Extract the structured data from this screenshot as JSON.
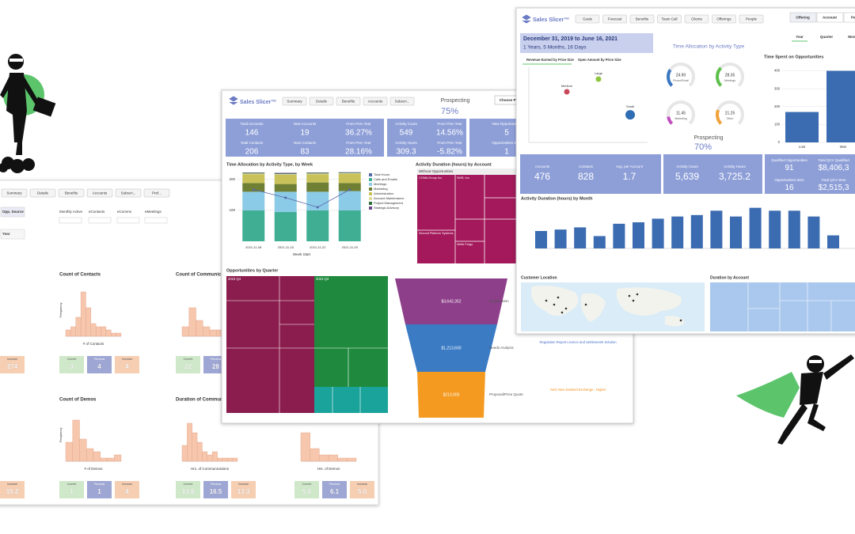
{
  "back_dashboard": {
    "buttons": [
      "Summary",
      "Details",
      "Benefits",
      "Accounts",
      "Subscri...",
      "Pref..."
    ],
    "filters": [
      "Opp. Source",
      "Year",
      "Monthly Active",
      "eContacts",
      "eComms",
      "eMeetings"
    ],
    "stat_labels": [
      "Current",
      "Previous",
      "Increase"
    ],
    "stat_colors": [
      "#cfe8c9",
      "#9ea6d3",
      "#f6ceb2"
    ],
    "bar_color": "#f6c6ad",
    "ylim": [
      0,
      15
    ],
    "histograms": [
      {
        "stats": [
          "274"
        ]
      },
      {
        "title": "Count of Contacts",
        "x_label": "# of Contacts",
        "y_label": "Frequency",
        "values": [
          2,
          3,
          6,
          14,
          9,
          4,
          3,
          3,
          2,
          1,
          1
        ],
        "stats": [
          "3",
          "4",
          "4"
        ]
      },
      {
        "title": "Count of Communications",
        "values": [
          3,
          9,
          5,
          3,
          2,
          2,
          1,
          1
        ],
        "stats": [
          "22",
          "28"
        ]
      },
      {
        "stats": [
          "15.2"
        ]
      },
      {
        "title": "Count of Demos",
        "x_label": "# of Demos",
        "y_label": "Frequency",
        "values": [
          6,
          13,
          7,
          4,
          3,
          1,
          1,
          2
        ],
        "stats": [
          "1",
          "1",
          "4"
        ]
      },
      {
        "title": "Duration of Communications",
        "x_label": "Hrs. of Communications",
        "values": [
          5,
          12,
          9,
          6,
          3,
          2,
          3,
          1,
          1,
          1,
          1
        ],
        "stats": [
          "13.8",
          "16.5",
          "13.3"
        ]
      },
      {
        "x_label": "Hrs. of Demos",
        "values": [
          9,
          4,
          2,
          2,
          1,
          1
        ],
        "stats": [
          "5.0",
          "6.1",
          "5.0"
        ]
      }
    ]
  },
  "middle_dashboard": {
    "logo": "Sales Slicer™",
    "buttons": [
      "Summary",
      "Details",
      "Benefits",
      "Accounts",
      "Subscri..."
    ],
    "prospecting": {
      "label": "Prospecting",
      "value": "75%"
    },
    "period_button": "Choose Per...",
    "kpi_color": "#8e9fd8",
    "kpis": [
      {
        "label": "Total Accounts",
        "value": "146"
      },
      {
        "label": "New Accounts",
        "value": "19"
      },
      {
        "label": "From Prev Year",
        "value": "36.27%"
      },
      {
        "label": "Total Contacts",
        "value": "206"
      },
      {
        "label": "New Contacts",
        "value": "83"
      },
      {
        "label": "From Prev Year",
        "value": "28.16%"
      },
      {
        "label": "Activity Count",
        "value": "549"
      },
      {
        "label": "From Prev Year",
        "value": "14.56%"
      },
      {
        "label": "Activity Hours",
        "value": "309.3"
      },
      {
        "label": "From Prev Year",
        "value": "-5.82%"
      },
      {
        "label": "New Opportunities",
        "value": "5"
      },
      {
        "label": "Opportunities Won",
        "value": "1"
      }
    ],
    "time_chart": {
      "type": "bar",
      "title": "Time Allocation by Activity Type, by Week",
      "x_label": "Week Start",
      "categories": [
        "2021-11-08",
        "2021-11-15",
        "2021-11-22",
        "2021-11-29"
      ],
      "ylim": [
        0,
        230
      ],
      "yticks": [
        100,
        200
      ],
      "line": {
        "name": "Total Hours",
        "color": "#5668a8",
        "values": [
          167,
          141,
          110,
          167
        ]
      },
      "series": [
        {
          "name": "Calls and Emails",
          "color": "#3fae93",
          "values": [
            100,
            95,
            100,
            100
          ]
        },
        {
          "name": "Meetings",
          "color": "#8ccbe8",
          "values": [
            60,
            65,
            60,
            62
          ]
        },
        {
          "name": "Marketing",
          "color": "#6f7f34",
          "values": [
            28,
            25,
            30,
            26
          ]
        },
        {
          "name": "Administration",
          "color": "#c9c25a",
          "values": [
            28,
            30,
            26,
            30
          ]
        },
        {
          "name": "Account Maintenance",
          "color": "#e0dc9c",
          "values": [
            3,
            2,
            3,
            2
          ]
        },
        {
          "name": "Project Management",
          "color": "#2e6e3c",
          "values": [
            2,
            2,
            2,
            2
          ]
        },
        {
          "name": "Strategic Advisory",
          "color": "#6b4a8a",
          "values": [
            1,
            2,
            1,
            1
          ]
        }
      ]
    },
    "duration_treemap": {
      "title": "Activity Duration (hours) by Account",
      "group": "Without Opportunities",
      "color": "#a3195b",
      "labels": [
        "CGMA Group Inc.",
        "SMR, Inc.",
        "Second Platform Systems",
        "Wells Fargo"
      ]
    },
    "opportunities": {
      "title": "Opportunities by Quarter",
      "groups": [
        {
          "name": "2023 Q4",
          "color": "#8b1d4e"
        },
        {
          "name": "2023 Q3",
          "color": "#1f8a3e"
        }
      ]
    },
    "funnel": {
      "stages": [
        "Qualification",
        "Needs Analysis",
        "Proposal/Price Quote"
      ],
      "labels": [
        "$3,642,352",
        "$1,213,600",
        "$213,000"
      ],
      "colors": [
        "#8d3f8a",
        "#3b7bc4",
        "#f49a20"
      ]
    },
    "notes": [
      {
        "text": "Regulation Report Licence and Settlements Solution",
        "color": "#4a72c8"
      },
      {
        "text": "NZX New Zealand Exchange - Digital",
        "color": "#f29120"
      }
    ]
  },
  "front_dashboard": {
    "logo": "Sales Slicer™",
    "buttons": [
      "Goals",
      "Forecast",
      "Benefits",
      "Team Call",
      "Clients",
      "Offerings",
      "People"
    ],
    "tabs": [
      "Offering",
      "Account",
      "Period"
    ],
    "period_tabs": [
      "Year",
      "Quarter",
      "Month"
    ],
    "date_range": "December 31, 2019 to June 16, 2021",
    "duration": "1 Years, 5 Months, 16 Days",
    "scatter": {
      "type": "scatter",
      "tabs": [
        "Revenue Earned by Price Size",
        "Open Amount by Price Size"
      ],
      "xlim": [
        0,
        2000
      ],
      "ylim": [
        -1100,
        1900
      ],
      "series": [
        {
          "name": "Medium",
          "color": "#c9485b",
          "x": [
            640
          ],
          "values": [
            921
          ]
        },
        {
          "name": "Large",
          "color": "#8dc63f",
          "x": [
            1173
          ],
          "values": [
            1426
          ]
        },
        {
          "name": "Small",
          "color": "#2f6db5",
          "x": [
            1707
          ],
          "values": [
            0
          ]
        }
      ]
    },
    "gauges": {
      "title": "Time Allocation by Activity Type",
      "categories": [
        "Phone/Email",
        "Meetings",
        "Marketing",
        "Other"
      ],
      "values": [
        24.9,
        28.35,
        11.45,
        21.25
      ],
      "value_labels": [
        "24.90",
        "28.35",
        "11.45",
        "21.25"
      ],
      "colors": [
        "#3a78c2",
        "#5cc04a",
        "#c24fc0",
        "#f3a23a"
      ]
    },
    "prospecting": {
      "label": "Prospecting",
      "value": "70%"
    },
    "opportunity_time": {
      "type": "bar",
      "title": "Time Spent on Opportunities",
      "categories": [
        "Lost",
        "Won"
      ],
      "values": [
        170,
        400
      ],
      "color": "#3b6bb0",
      "ylim": [
        0,
        420
      ],
      "yticks": [
        0,
        100,
        200,
        300,
        400
      ]
    },
    "kpi_color": "#8e9fd8",
    "kpis": [
      {
        "label": "Accounts",
        "value": "476"
      },
      {
        "label": "Contacts",
        "value": "828"
      },
      {
        "label": "Avg. per Account",
        "value": "1.7"
      },
      {
        "label": "Activity Count",
        "value": "5,639"
      },
      {
        "label": "Activity Hours",
        "value": "3,725.2"
      },
      {
        "label": "Qualified Opportunities",
        "value": "91"
      },
      {
        "label": "Total QCV Qualified",
        "value": "$8,406,3"
      },
      {
        "label": "Opportunities Won",
        "value": "16"
      },
      {
        "label": "Total QCV Won",
        "value": "$2,515,3"
      }
    ],
    "monthly": {
      "type": "bar",
      "title": "Activity Duration (hours) by Month",
      "values": [
        120,
        130,
        145,
        85,
        170,
        180,
        205,
        220,
        230,
        260,
        220,
        280,
        260,
        260,
        220,
        90
      ],
      "color": "#3b6bb0",
      "ylim": [
        0,
        300
      ]
    },
    "map_title": "Customer Location",
    "account_title": "Duration by Account"
  }
}
